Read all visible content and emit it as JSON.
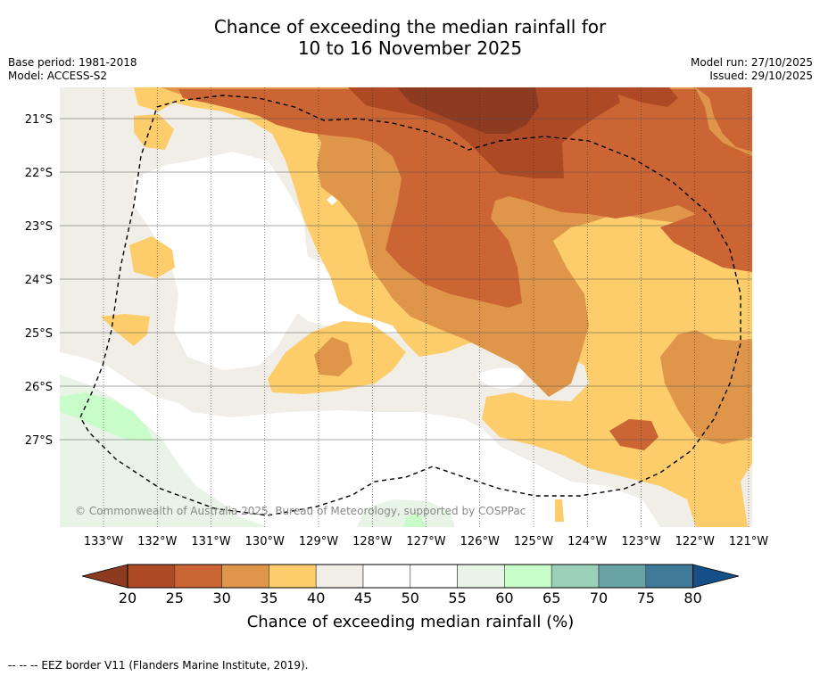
{
  "title": {
    "line1": "Chance of exceeding the median rainfall for",
    "line2": "10 to 16 November 2025"
  },
  "meta": {
    "base_period": "Base period: 1981-2018",
    "model": "Model: ACCESS-S2",
    "model_run": "Model run: 27/10/2025",
    "issued": "Issued: 29/10/2025"
  },
  "map": {
    "lat_labels": [
      "21°S",
      "22°S",
      "23°S",
      "24°S",
      "25°S",
      "26°S",
      "27°S"
    ],
    "lon_labels": [
      "133°W",
      "132°W",
      "131°W",
      "130°W",
      "129°W",
      "128°W",
      "127°W",
      "126°W",
      "125°W",
      "124°W",
      "123°W",
      "122°W",
      "121°W"
    ],
    "copyright": "© Commonwealth of Australia 2025, Bureau of Meteorology, supported by COSPPac"
  },
  "legend": {
    "label": "Chance of exceeding median rainfall (%)",
    "ticks": [
      "20",
      "25",
      "30",
      "35",
      "40",
      "45",
      "50",
      "55",
      "60",
      "65",
      "70",
      "75",
      "80"
    ],
    "colors": {
      "lt20": "#8c3a20",
      "20-25": "#ad4a25",
      "25-30": "#cb6533",
      "30-35": "#e0964a",
      "35-40": "#fccd6a",
      "40-45": "#f1ede7",
      "45-50": "#ffffff",
      "50-55": "#ffffff",
      "55-60": "#e8f4e6",
      "60-65": "#c8fcc8",
      "65-70": "#9acfb8",
      "70-75": "#6aa3a6",
      "75-80": "#3f7a98",
      "gt80": "#154f87"
    }
  },
  "footer": "--  --  -- EEZ border V11 (Flanders Marine Institute, 2019)."
}
